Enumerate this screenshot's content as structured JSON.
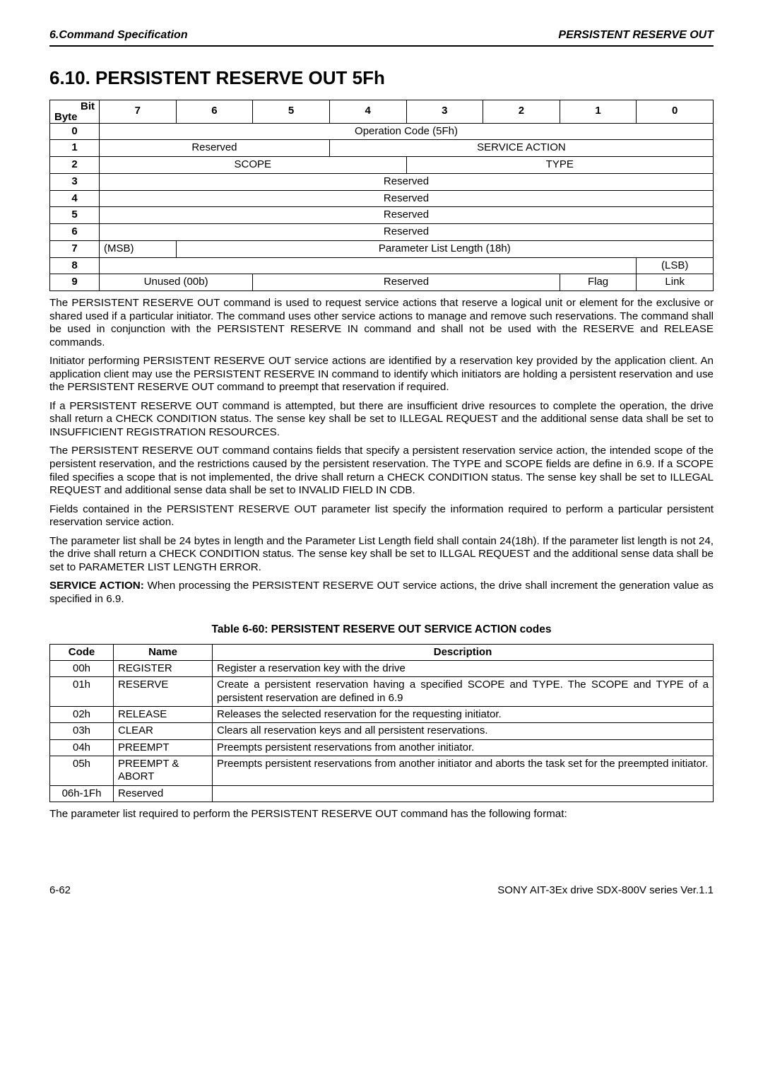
{
  "header": {
    "left": "6.Command Specification",
    "right": "PERSISTENT RESERVE OUT"
  },
  "title": "6.10. PERSISTENT RESERVE OUT 5Fh",
  "bitTable": {
    "corner": "Bit\nByte",
    "bits": [
      "7",
      "6",
      "5",
      "4",
      "3",
      "2",
      "1",
      "0"
    ],
    "rows": [
      {
        "byte": "0",
        "cells": [
          {
            "span": 8,
            "text": "Operation Code (5Fh)"
          }
        ]
      },
      {
        "byte": "1",
        "cells": [
          {
            "span": 3,
            "text": "Reserved"
          },
          {
            "span": 5,
            "text": "SERVICE ACTION"
          }
        ]
      },
      {
        "byte": "2",
        "cells": [
          {
            "span": 4,
            "text": "SCOPE"
          },
          {
            "span": 4,
            "text": "TYPE"
          }
        ]
      },
      {
        "byte": "3",
        "cells": [
          {
            "span": 8,
            "text": "Reserved"
          }
        ]
      },
      {
        "byte": "4",
        "cells": [
          {
            "span": 8,
            "text": "Reserved"
          }
        ]
      },
      {
        "byte": "5",
        "cells": [
          {
            "span": 8,
            "text": "Reserved"
          }
        ]
      },
      {
        "byte": "6",
        "cells": [
          {
            "span": 8,
            "text": "Reserved"
          }
        ]
      },
      {
        "byte": "7",
        "cells": [
          {
            "span": 1,
            "text": "(MSB)",
            "align": "left"
          },
          {
            "span": 7,
            "text": "Parameter List Length (18h)"
          }
        ]
      },
      {
        "byte": "8",
        "cells": [
          {
            "span": 7,
            "text": ""
          },
          {
            "span": 1,
            "text": "(LSB)"
          }
        ]
      },
      {
        "byte": "9",
        "cells": [
          {
            "span": 2,
            "text": "Unused (00b)"
          },
          {
            "span": 4,
            "text": "Reserved"
          },
          {
            "span": 1,
            "text": "Flag"
          },
          {
            "span": 1,
            "text": "Link"
          }
        ]
      }
    ]
  },
  "paras": {
    "p1": "The PERSISTENT RESERVE OUT command is used to request service actions that reserve a logical unit or element for the exclusive or shared used if a particular initiator. The command uses other service actions to manage and remove such reservations. The command shall be used in conjunction with the PERSISTENT RESERVE IN command and shall not be used with the RESERVE and RELEASE commands.",
    "p2": "Initiator performing PERSISTENT RESERVE OUT service actions are identified by a reservation key provided by the application client. An application client may use the PERSISTENT RESERVE IN command to identify which initiators are holding a persistent reservation and use the PERSISTENT RESERVE OUT command to preempt that reservation if required.",
    "p3": "If a PERSISTENT RESERVE OUT command is attempted, but there are insufficient drive resources to complete the operation, the drive shall return a CHECK CONDITION status. The sense key shall be set to ILLEGAL REQUEST and the additional sense data shall be set to INSUFFICIENT REGISTRATION RESOURCES.",
    "p4": "The PERSISTENT RESERVE OUT command contains fields that specify a persistent reservation service action, the intended scope of the persistent reservation, and the restrictions caused by the persistent reservation. The TYPE and SCOPE fields are define in 6.9. If a SCOPE filed specifies a scope that is not implemented, the drive shall return a CHECK CONDITION status. The sense key shall be set to ILLEGAL REQUEST and additional sense data shall be set to INVALID FIELD IN CDB.",
    "p5": "Fields contained in the PERSISTENT RESERVE OUT parameter list specify the information required to perform a particular persistent reservation service action.",
    "p6": "The parameter list shall be 24 bytes in length and the Parameter List Length field shall contain 24(18h). If the parameter list length is not 24, the drive shall return a CHECK CONDITION status. The sense key shall be set to ILLGAL REQUEST and the additional sense data shall be set to PARAMETER LIST LENGTH ERROR.",
    "p7a": "SERVICE ACTION:",
    "p7b": " When processing the PERSISTENT RESERVE OUT service actions, the drive shall increment the generation value as specified in 6.9.",
    "p8": "The parameter list required to perform the PERSISTENT RESERVE OUT command has the following format:"
  },
  "tableCaption": "Table 6-60: PERSISTENT RESERVE OUT SERVICE ACTION codes",
  "codeTable": {
    "headers": [
      "Code",
      "Name",
      "Description"
    ],
    "colWidths": [
      "90px",
      "140px",
      "auto"
    ],
    "rows": [
      {
        "code": "00h",
        "name": "REGISTER",
        "desc": "Register a reservation key with the drive"
      },
      {
        "code": "01h",
        "name": "RESERVE",
        "desc": "Create a persistent reservation having a specified SCOPE and TYPE. The SCOPE and TYPE of a persistent reservation are defined in 6.9",
        "just": true
      },
      {
        "code": "02h",
        "name": "RELEASE",
        "desc": "Releases the selected reservation for the requesting initiator."
      },
      {
        "code": "03h",
        "name": "CLEAR",
        "desc": "Clears all reservation keys and all persistent reservations."
      },
      {
        "code": "04h",
        "name": "PREEMPT",
        "desc": "Preempts persistent reservations from another initiator."
      },
      {
        "code": "05h",
        "name": "PREEMPT & ABORT",
        "desc": "Preempts persistent reservations from another initiator and aborts the task set for the preempted initiator."
      },
      {
        "code": "06h-1Fh",
        "name": "Reserved",
        "desc": ""
      }
    ]
  },
  "footer": {
    "left": "6-62",
    "right": "SONY AIT-3Ex drive SDX-800V series Ver.1.1"
  }
}
